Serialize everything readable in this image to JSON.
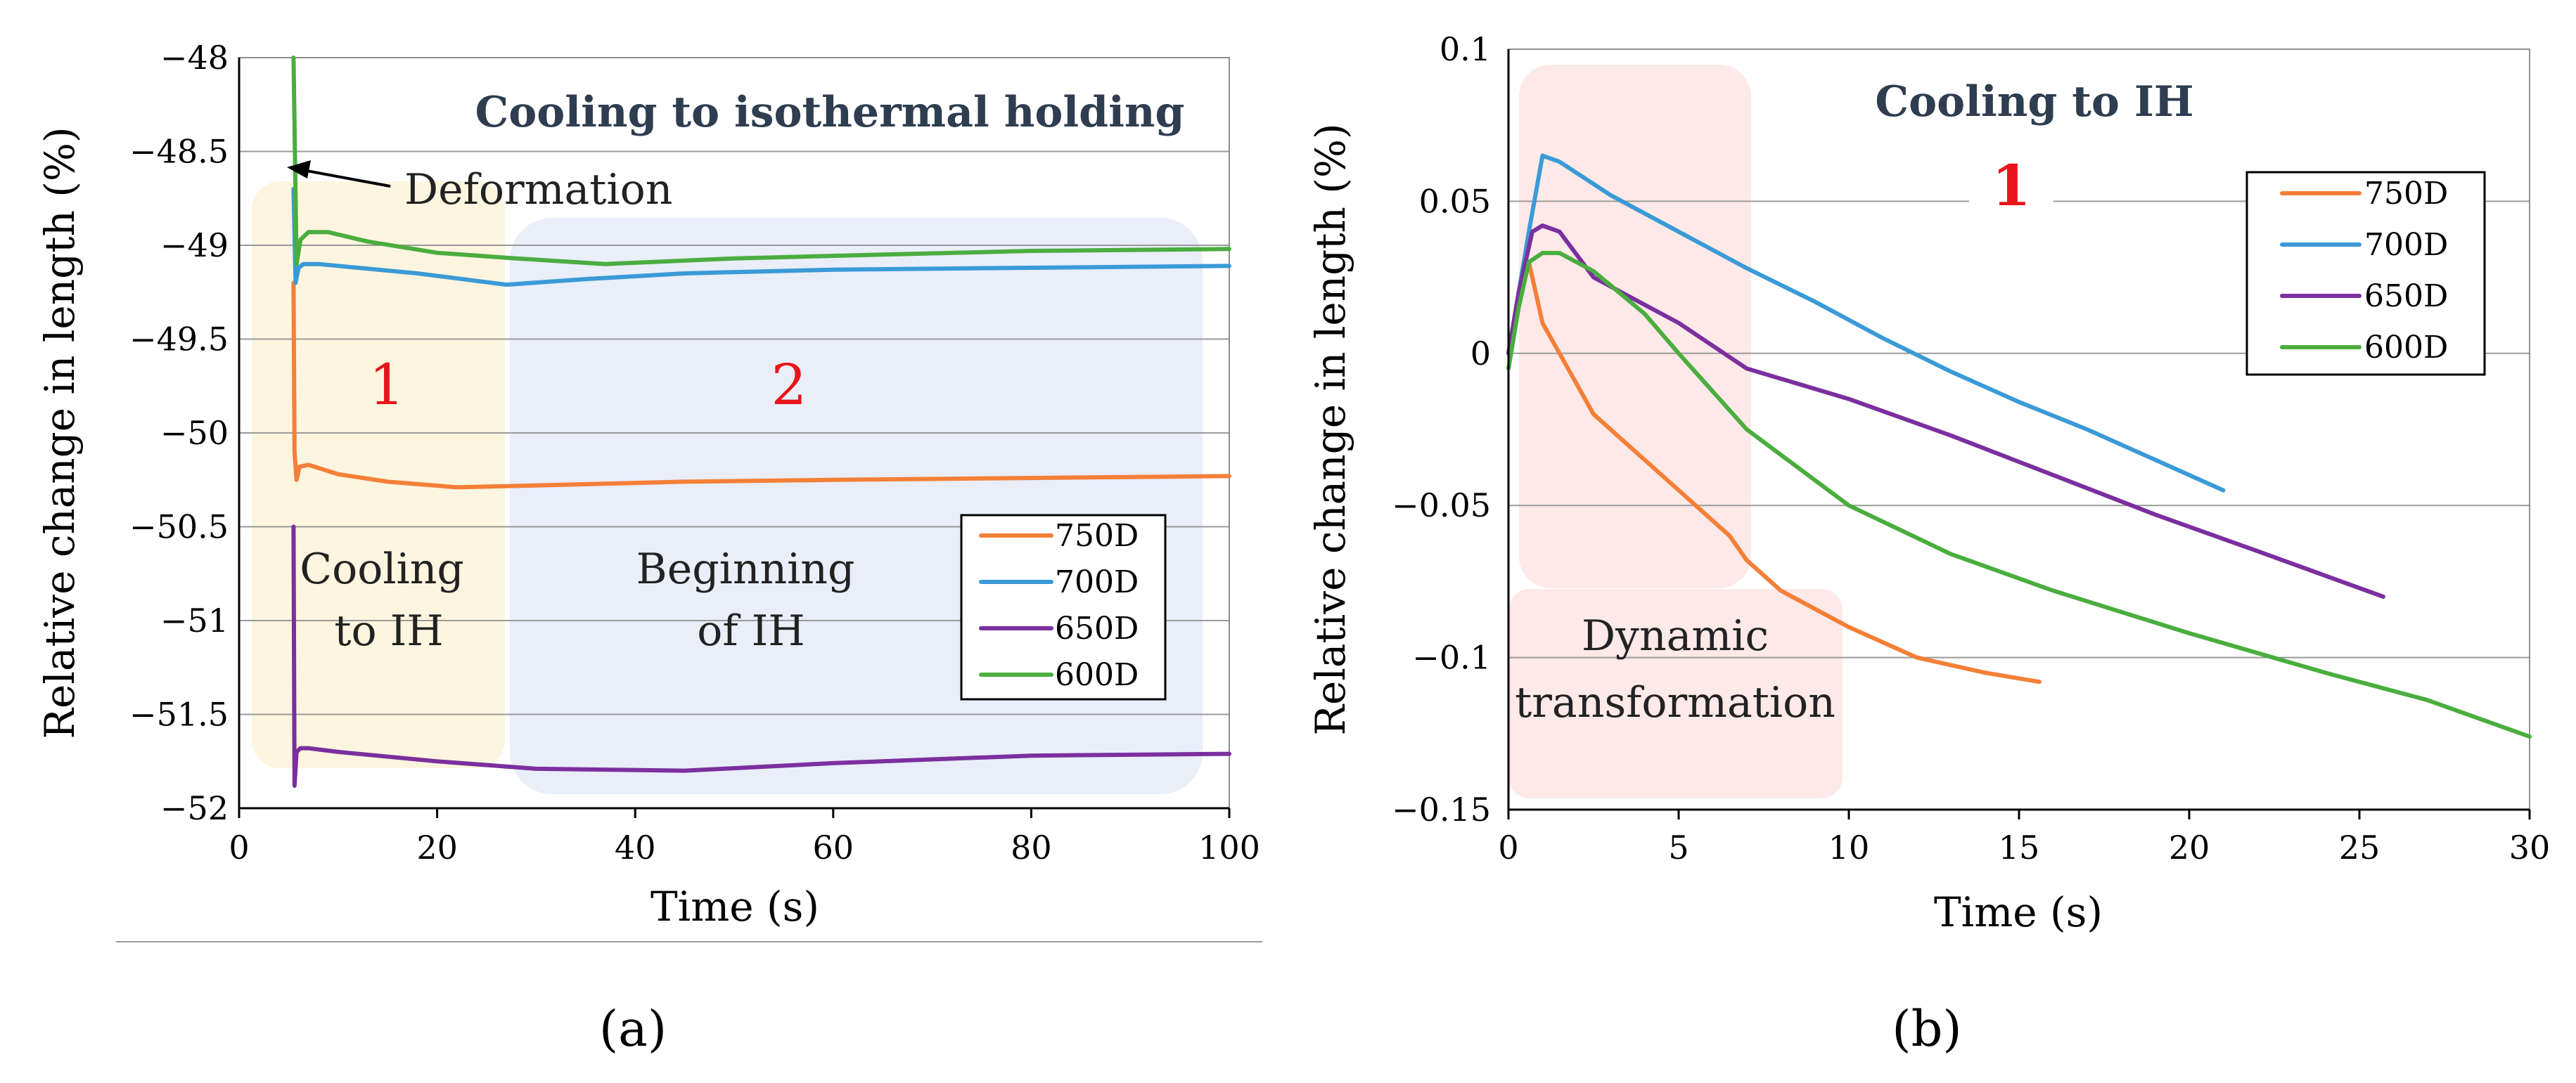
{
  "colors": {
    "750D": "#f47f37",
    "700D": "#3a9ad7",
    "650D": "#7b2f9e",
    "600D": "#4aad3e",
    "region_yellow": "#fdf5df",
    "region_blue": "#e9eef8",
    "region_pink": "#fde9e8",
    "region_number": "#e8141a",
    "title": "#2e3d4f"
  },
  "chart_data": [
    {
      "id": "a",
      "type": "line",
      "panel_label": "(a)",
      "title": "Cooling to isothermal holding",
      "xlabel": "Time (s)",
      "ylabel": "Relative change in length (%)",
      "xlim": [
        0,
        100
      ],
      "ylim": [
        -52,
        -48
      ],
      "xticks": [
        0,
        20,
        40,
        60,
        80,
        100
      ],
      "xtick_labels": [
        "0",
        "20",
        "40",
        "60",
        "80",
        "100"
      ],
      "yticks": [
        -48,
        -48.5,
        -49,
        -49.5,
        -50,
        -50.5,
        -51,
        -51.5,
        -52
      ],
      "ytick_labels": [
        "−48",
        "−48.5",
        "−49",
        "−49.5",
        "−50",
        "−50.5",
        "−51",
        "−51.5",
        "−52"
      ],
      "grid": true,
      "legend_position": "bottom-right",
      "series": [
        {
          "name": "750D",
          "x": [
            5.5,
            5.6,
            5.8,
            6.1,
            7,
            10,
            15,
            22,
            30,
            45,
            60,
            80,
            100
          ],
          "y": [
            -49.2,
            -50.1,
            -50.25,
            -50.18,
            -50.17,
            -50.22,
            -50.26,
            -50.29,
            -50.28,
            -50.26,
            -50.25,
            -50.24,
            -50.23
          ]
        },
        {
          "name": "700D",
          "x": [
            5.5,
            5.7,
            6.0,
            6.5,
            8,
            12,
            18,
            27,
            35,
            45,
            60,
            80,
            100
          ],
          "y": [
            -48.7,
            -49.2,
            -49.12,
            -49.1,
            -49.1,
            -49.12,
            -49.15,
            -49.21,
            -49.18,
            -49.15,
            -49.13,
            -49.12,
            -49.11
          ]
        },
        {
          "name": "650D",
          "x": [
            5.5,
            5.6,
            5.8,
            6.2,
            7,
            10,
            20,
            30,
            45,
            60,
            80,
            100
          ],
          "y": [
            -50.5,
            -51.88,
            -51.7,
            -51.68,
            -51.68,
            -51.7,
            -51.75,
            -51.79,
            -51.8,
            -51.76,
            -51.72,
            -51.71
          ]
        },
        {
          "name": "600D",
          "x": [
            5.5,
            5.8,
            6.2,
            7,
            9,
            13,
            20,
            28,
            37,
            50,
            65,
            80,
            100
          ],
          "y": [
            -48.0,
            -49.1,
            -48.97,
            -48.93,
            -48.93,
            -48.98,
            -49.04,
            -49.07,
            -49.1,
            -49.07,
            -49.05,
            -49.03,
            -49.02
          ]
        }
      ],
      "annotations": [
        {
          "id": "deformation",
          "text": "Deformation"
        },
        {
          "id": "region1",
          "text": "1"
        },
        {
          "id": "region2",
          "text": "2"
        },
        {
          "id": "cooling",
          "lines": [
            "Cooling",
            "to IH"
          ]
        },
        {
          "id": "beginning",
          "lines": [
            "Beginning",
            "of IH"
          ]
        }
      ]
    },
    {
      "id": "b",
      "type": "line",
      "panel_label": "(b)",
      "title": "Cooling to IH",
      "xlabel": "Time (s)",
      "ylabel": "Relative change in length (%)",
      "xlim": [
        0,
        30
      ],
      "ylim": [
        -0.15,
        0.1
      ],
      "xticks": [
        0,
        5,
        10,
        15,
        20,
        25,
        30
      ],
      "xtick_labels": [
        "0",
        "5",
        "10",
        "15",
        "20",
        "25",
        "30"
      ],
      "yticks": [
        0.1,
        0.05,
        0,
        -0.05,
        -0.1,
        -0.15
      ],
      "ytick_labels": [
        "0.1",
        "0.05",
        "0",
        "−0.05",
        "−0.1",
        "−0.15"
      ],
      "grid": true,
      "legend_position": "top-right",
      "series": [
        {
          "name": "750D",
          "x": [
            0,
            0.3,
            0.6,
            0.8,
            1.0,
            1.5,
            2.5,
            4,
            5.5,
            6.5,
            7,
            8,
            10,
            12,
            14,
            15.6
          ],
          "y": [
            0.0,
            0.02,
            0.03,
            0.02,
            0.01,
            0.0,
            -0.02,
            -0.035,
            -0.05,
            -0.06,
            -0.068,
            -0.078,
            -0.09,
            -0.1,
            -0.105,
            -0.108
          ]
        },
        {
          "name": "700D",
          "x": [
            0,
            0.3,
            0.6,
            1.0,
            1.5,
            3,
            5,
            7,
            9,
            11,
            13,
            15,
            17,
            19,
            21
          ],
          "y": [
            0.0,
            0.02,
            0.04,
            0.065,
            0.063,
            0.052,
            0.04,
            0.028,
            0.017,
            0.005,
            -0.006,
            -0.016,
            -0.025,
            -0.035,
            -0.045
          ]
        },
        {
          "name": "650D",
          "x": [
            0,
            0.3,
            0.7,
            1.0,
            1.5,
            2.5,
            4,
            5,
            7,
            10,
            13,
            16,
            19,
            22,
            25.7
          ],
          "y": [
            0.0,
            0.02,
            0.04,
            0.042,
            0.04,
            0.025,
            0.016,
            0.01,
            -0.005,
            -0.015,
            -0.027,
            -0.04,
            -0.053,
            -0.065,
            -0.08
          ]
        },
        {
          "name": "600D",
          "x": [
            0,
            0.3,
            0.6,
            1.0,
            1.5,
            2.5,
            4,
            5,
            7,
            10,
            13,
            16,
            20,
            24,
            27,
            30
          ],
          "y": [
            -0.005,
            0.015,
            0.03,
            0.033,
            0.033,
            0.027,
            0.013,
            0.0,
            -0.025,
            -0.05,
            -0.066,
            -0.078,
            -0.092,
            -0.105,
            -0.114,
            -0.126
          ]
        }
      ],
      "annotations": [
        {
          "id": "region1",
          "text": "1"
        },
        {
          "id": "dynamic",
          "lines": [
            "Dynamic",
            "transformation"
          ]
        }
      ]
    }
  ]
}
